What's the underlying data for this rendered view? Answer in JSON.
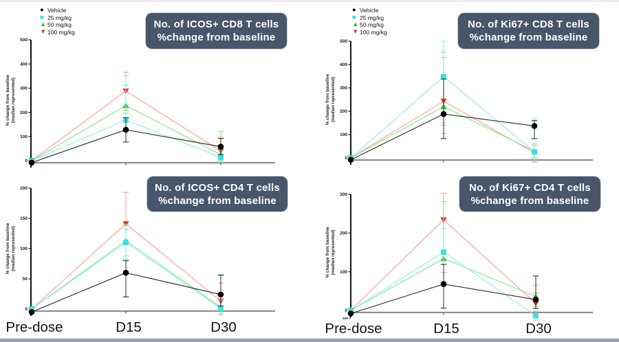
{
  "figure": {
    "type": "2x2-line-chart-grid",
    "x_labels": [
      "Pre-dose",
      "D15",
      "D30"
    ]
  },
  "colors": {
    "title_bg": "#47566b",
    "title_text": "#ffffff",
    "y_axis": "#111111",
    "x_axis": "#8f8f8f",
    "tick_text": "#111111",
    "bottom_bar": "#9aa2af"
  },
  "legend": {
    "entries": [
      {
        "label": "Vehicle",
        "marker": "circle",
        "glyph": "●",
        "color": "#000000",
        "line_color": "#2b2b2b",
        "err_color": "#3d3d3d"
      },
      {
        "label": "25 mg/kg",
        "marker": "square",
        "glyph": "■",
        "color": "#2fe3e3",
        "line_color": "#8feeee",
        "err_color": "#8feeee"
      },
      {
        "label": "50 mg/kg",
        "marker": "triangle-up",
        "glyph": "▲",
        "color": "#2ecc2e",
        "line_color": "#86e986",
        "err_color": "#86e986"
      },
      {
        "label": "100 mg/kg",
        "marker": "triangle-down",
        "glyph": "▼",
        "color": "#ee2f2f",
        "line_color": "#ff9d9d",
        "err_color": "#ff9d9d"
      }
    ]
  },
  "chart_data": [
    {
      "id": "icos-cd8",
      "type": "line",
      "title_line1": "No. of ICOS+ CD8 T cells",
      "title_line2": "%change  from baseline",
      "ylabel_line1": "% change from baseline",
      "ylabel_line2": "(median represented)",
      "categories": [
        "Pre-dose",
        "D15",
        "D30"
      ],
      "ylim": [
        -20,
        500
      ],
      "yticks": [
        0,
        100,
        200,
        300,
        400,
        500
      ],
      "grid": false,
      "legend_position": "top-left",
      "series": [
        {
          "name": "Vehicle",
          "values": [
            -8,
            128,
            58
          ],
          "err_low": [
            -8,
            77,
            25
          ],
          "err_high": [
            -8,
            178,
            92
          ]
        },
        {
          "name": "25 mg/kg",
          "values": [
            0,
            168,
            14
          ],
          "err_low": [
            0,
            120,
            -5
          ],
          "err_high": [
            0,
            352,
            42
          ]
        },
        {
          "name": "50 mg/kg",
          "values": [
            0,
            228,
            25
          ],
          "err_low": [
            0,
            196,
            0
          ],
          "err_high": [
            0,
            312,
            120
          ]
        },
        {
          "name": "100 mg/kg",
          "values": [
            0,
            288,
            40
          ],
          "err_low": [
            0,
            208,
            8
          ],
          "err_high": [
            0,
            366,
            97
          ]
        }
      ]
    },
    {
      "id": "ki67-cd8",
      "type": "line",
      "title_line1": "No. of Ki67+ CD8 T cells",
      "title_line2": "%change  from baseline",
      "ylabel_line1": "% change from baseline",
      "ylabel_line2": "(median represented)",
      "categories": [
        "Pre-dose",
        "D15",
        "D30"
      ],
      "ylim": [
        -20,
        500
      ],
      "yticks": [
        0,
        100,
        200,
        300,
        400,
        500
      ],
      "grid": false,
      "legend_position": "top-left",
      "series": [
        {
          "name": "Vehicle",
          "values": [
            -8,
            188,
            137
          ],
          "err_low": [
            -8,
            83,
            83
          ],
          "err_high": [
            -8,
            338,
            160
          ]
        },
        {
          "name": "25 mg/kg",
          "values": [
            0,
            348,
            26
          ],
          "err_low": [
            0,
            150,
            -5
          ],
          "err_high": [
            0,
            500,
            168
          ]
        },
        {
          "name": "50 mg/kg",
          "values": [
            0,
            220,
            29
          ],
          "err_low": [
            0,
            105,
            0
          ],
          "err_high": [
            0,
            430,
            60
          ]
        },
        {
          "name": "100 mg/kg",
          "values": [
            0,
            243,
            22
          ],
          "err_low": [
            0,
            140,
            -18
          ],
          "err_high": [
            0,
            453,
            54
          ]
        }
      ]
    },
    {
      "id": "icos-cd4",
      "type": "line",
      "title_line1": "No. of ICOS+ CD4 T cells",
      "title_line2": "%change  from baseline",
      "ylabel_line1": "% change from baseline",
      "ylabel_line2": "(median represented)",
      "categories": [
        "Pre-dose",
        "D15",
        "D30"
      ],
      "ylim": [
        -15,
        200
      ],
      "yticks": [
        0,
        50,
        100,
        150,
        200
      ],
      "grid": false,
      "legend_position": "none",
      "series": [
        {
          "name": "Vehicle",
          "values": [
            -5,
            60,
            24
          ],
          "err_low": [
            -5,
            20,
            5
          ],
          "err_high": [
            -5,
            80,
            56
          ]
        },
        {
          "name": "25 mg/kg",
          "values": [
            0,
            110,
            1
          ],
          "err_low": [
            0,
            88,
            -8
          ],
          "err_high": [
            0,
            132,
            15
          ]
        },
        {
          "name": "50 mg/kg",
          "values": [
            0,
            113,
            3
          ],
          "err_low": [
            0,
            82,
            -10
          ],
          "err_high": [
            0,
            140,
            57
          ]
        },
        {
          "name": "100 mg/kg",
          "values": [
            0,
            141,
            13
          ],
          "err_low": [
            0,
            108,
            0
          ],
          "err_high": [
            0,
            193,
            43
          ]
        }
      ]
    },
    {
      "id": "ki67-cd4",
      "type": "line",
      "title_line1": "No. of Ki67+ CD4 T cells",
      "title_line2": "%change  from baseline",
      "ylabel_line1": "% change from baseline",
      "ylabel_line2": "(median represented)",
      "categories": [
        "Pre-dose",
        "D15",
        "D30"
      ],
      "ylim": [
        -100,
        300
      ],
      "yticks": [
        0,
        100,
        200,
        300
      ],
      "ymin_label": "-100",
      "grid": false,
      "legend_position": "none",
      "series": [
        {
          "name": "Vehicle",
          "values": [
            -8,
            68,
            28
          ],
          "err_low": [
            -8,
            6,
            5
          ],
          "err_high": [
            -8,
            119,
            89
          ]
        },
        {
          "name": "25 mg/kg",
          "values": [
            0,
            151,
            -14
          ],
          "err_low": [
            0,
            98,
            -25
          ],
          "err_high": [
            0,
            211,
            10
          ]
        },
        {
          "name": "50 mg/kg",
          "values": [
            0,
            134,
            36
          ],
          "err_low": [
            0,
            98,
            10
          ],
          "err_high": [
            0,
            281,
            65
          ]
        },
        {
          "name": "100 mg/kg",
          "values": [
            0,
            234,
            18
          ],
          "err_low": [
            0,
            145,
            -2
          ],
          "err_high": [
            0,
            303,
            45
          ]
        }
      ]
    }
  ]
}
